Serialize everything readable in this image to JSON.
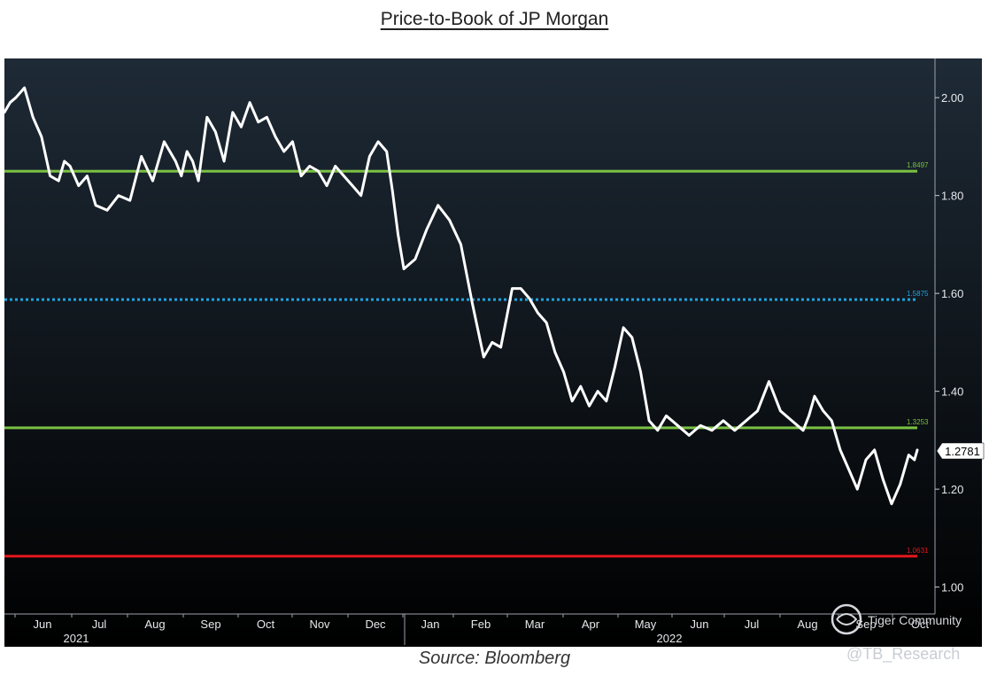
{
  "title": "Price-to-Book of JP Morgan",
  "source": "Source: Bloomberg",
  "watermark": {
    "brand": "Tiger Community",
    "handle": "@TB_Research"
  },
  "chart_data": {
    "type": "line",
    "title": "Price-to-Book of JP Morgan",
    "xlabel": "",
    "ylabel": "",
    "ylim": [
      0.945,
      2.08
    ],
    "y_ticks": [
      "1.00",
      "1.20",
      "1.40",
      "1.60",
      "1.80",
      "2.00"
    ],
    "month_labels": [
      "Jun",
      "Jul",
      "Aug",
      "Sep",
      "Oct",
      "Nov",
      "Dec",
      "Jan",
      "Feb",
      "Mar",
      "Apr",
      "May",
      "Jun",
      "Jul",
      "Aug",
      "Sep",
      "Oct"
    ],
    "year_labels": [
      "2021",
      "2022"
    ],
    "grid": false,
    "legend": "none",
    "last_value": {
      "label": "1.2781",
      "value": 1.2781
    },
    "reference_lines": [
      {
        "value": 1.8497,
        "label": "1.8497",
        "style": "solid",
        "color": "#7ac143"
      },
      {
        "value": 1.5875,
        "label": "1.5875",
        "style": "dotted",
        "color": "#1ea3e0"
      },
      {
        "value": 1.3253,
        "label": "1.3253",
        "style": "solid",
        "color": "#7ac143"
      },
      {
        "value": 1.0631,
        "label": "1.0631",
        "style": "solid",
        "color": "#e3171c"
      }
    ],
    "series": [
      {
        "color": "#ffffff",
        "x_months": [
          0,
          0.1,
          0.2,
          0.35,
          0.5,
          0.65,
          0.8,
          0.95,
          1.05,
          1.15,
          1.3,
          1.45,
          1.6,
          1.8,
          2.0,
          2.2,
          2.4,
          2.6,
          2.8,
          3.0,
          3.1,
          3.2,
          3.3,
          3.4,
          3.55,
          3.7,
          3.85,
          4.0,
          4.15,
          4.3,
          4.45,
          4.6,
          4.75,
          4.9,
          5.05,
          5.2,
          5.35,
          5.5,
          5.65,
          5.8,
          5.95,
          6.1,
          6.25,
          6.4,
          6.55,
          6.7,
          6.8,
          6.9,
          7.0,
          7.2,
          7.4,
          7.6,
          7.8,
          8.0,
          8.2,
          8.4,
          8.55,
          8.7,
          8.8,
          8.9,
          9.05,
          9.2,
          9.35,
          9.5,
          9.65,
          9.8,
          9.95,
          10.1,
          10.25,
          10.4,
          10.55,
          10.7,
          10.85,
          11.0,
          11.15,
          11.3,
          11.45,
          11.6,
          11.8,
          12.0,
          12.2,
          12.4,
          12.6,
          12.8,
          13.0,
          13.2,
          13.4,
          13.6,
          13.8,
          13.9,
          14.0,
          14.1,
          14.2,
          14.35,
          14.5,
          14.65,
          14.8,
          14.95,
          15.1,
          15.25,
          15.4,
          15.55,
          15.7,
          15.85,
          15.95,
          16.0
        ],
        "values": [
          1.97,
          1.99,
          2.0,
          2.02,
          1.96,
          1.92,
          1.84,
          1.83,
          1.87,
          1.86,
          1.82,
          1.84,
          1.78,
          1.77,
          1.8,
          1.79,
          1.88,
          1.83,
          1.91,
          1.87,
          1.84,
          1.89,
          1.87,
          1.83,
          1.96,
          1.93,
          1.87,
          1.97,
          1.94,
          1.99,
          1.95,
          1.96,
          1.92,
          1.89,
          1.91,
          1.84,
          1.86,
          1.85,
          1.82,
          1.86,
          1.84,
          1.82,
          1.8,
          1.88,
          1.91,
          1.89,
          1.81,
          1.72,
          1.65,
          1.67,
          1.73,
          1.78,
          1.75,
          1.7,
          1.58,
          1.47,
          1.5,
          1.49,
          1.55,
          1.61,
          1.61,
          1.59,
          1.56,
          1.54,
          1.48,
          1.44,
          1.38,
          1.41,
          1.37,
          1.4,
          1.38,
          1.45,
          1.53,
          1.51,
          1.44,
          1.34,
          1.32,
          1.35,
          1.33,
          1.31,
          1.33,
          1.32,
          1.34,
          1.32,
          1.34,
          1.36,
          1.42,
          1.36,
          1.34,
          1.33,
          1.32,
          1.35,
          1.39,
          1.36,
          1.34,
          1.28,
          1.24,
          1.2,
          1.26,
          1.28,
          1.22,
          1.17,
          1.21,
          1.27,
          1.26,
          1.28
        ]
      }
    ]
  }
}
